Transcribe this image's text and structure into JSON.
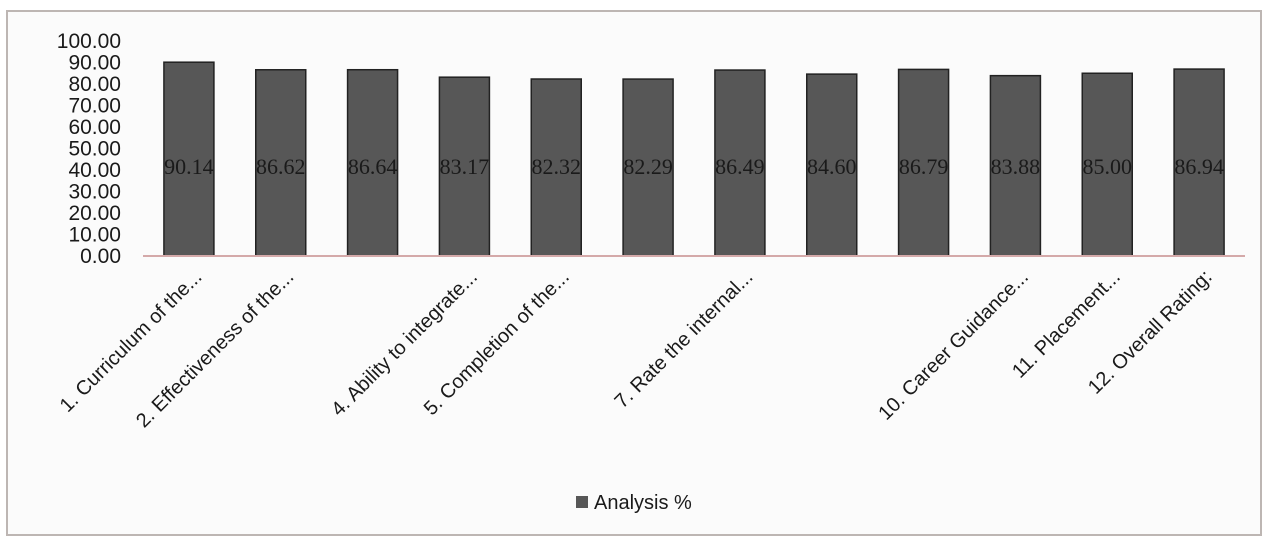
{
  "chart_data": {
    "type": "bar",
    "categories": [
      "1. Curriculum of the...",
      "2. Effectiveness of the...",
      "",
      "4. Ability to integrate...",
      "5. Completion of  the...",
      "",
      "7. Rate the internal...",
      "",
      "",
      "10. Career Guidance...",
      "11. Placement...",
      "12. Overall Rating:"
    ],
    "series": [
      {
        "name": "Analysis %",
        "values": [
          90.14,
          86.62,
          86.64,
          83.17,
          82.32,
          82.29,
          86.49,
          84.6,
          86.79,
          83.88,
          85.0,
          86.94
        ],
        "labels": [
          "90.14",
          "86.62",
          "86.64",
          "83.17",
          "82.32",
          "82.29",
          "86.49",
          "84.60",
          "86.79",
          "83.88",
          "85.00",
          "86.94"
        ]
      }
    ],
    "y_ticks": [
      "0.00",
      "10.00",
      "20.00",
      "30.00",
      "40.00",
      "50.00",
      "60.00",
      "70.00",
      "80.00",
      "90.00",
      "100.00"
    ],
    "ylim": [
      0,
      100
    ],
    "legend": {
      "position": "bottom",
      "label": "Analysis %"
    },
    "grid": false,
    "colors": {
      "bar": "#575757",
      "bar_edge": "#222222",
      "axis": "#d4a9a9",
      "frame": "#bdb6b3"
    }
  }
}
